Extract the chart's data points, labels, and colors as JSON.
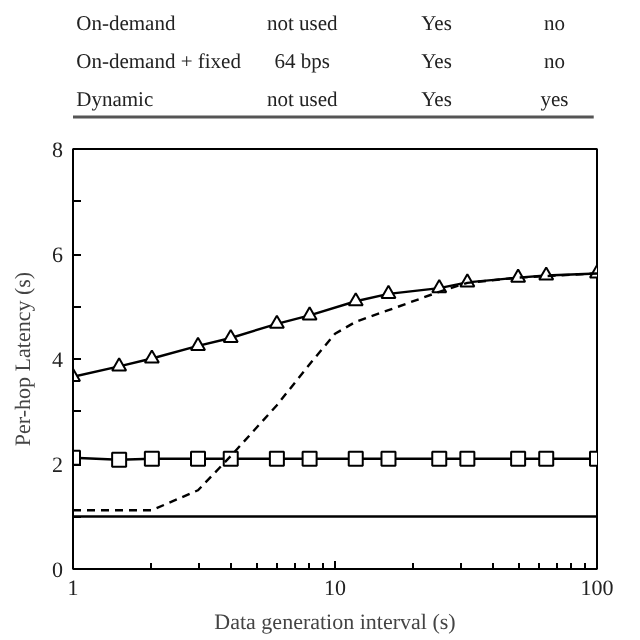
{
  "chart_data": {
    "type": "line",
    "xlabel": "Data generation interval (s)",
    "ylabel": "Per-hop Latency (s)",
    "log": "x",
    "xlim": [
      1,
      100
    ],
    "xticks": [
      1,
      10,
      100
    ],
    "ylim": [
      0,
      8
    ],
    "yticks": [
      0,
      {
        "value": 1,
        "label": null
      },
      2,
      {
        "value": 3,
        "label": null
      },
      4,
      {
        "value": 5,
        "label": null
      },
      6,
      {
        "value": 7,
        "label": null
      },
      8
    ],
    "grid": false,
    "annotations": [
      "On-demand",
      "not used",
      "Yes",
      "no",
      "On-demand + fixed",
      "64 bps",
      "Yes",
      "no",
      "Dynamic",
      "not used",
      "Yes",
      "yes"
    ],
    "series": [
      {
        "color": "#000000",
        "marker": "triangle",
        "line_style": "solid",
        "x": [
          1,
          1.5,
          2,
          3,
          4,
          6,
          8,
          12,
          16,
          25,
          32,
          50,
          64,
          100
        ],
        "values": [
          3.66,
          3.86,
          4.01,
          4.25,
          4.4,
          4.67,
          4.83,
          5.1,
          5.24,
          5.35,
          5.46,
          5.55,
          5.59,
          5.63
        ]
      },
      {
        "color": "#000000",
        "marker": "square",
        "line_style": "solid",
        "x": [
          1,
          1.5,
          2,
          3,
          4,
          6,
          8,
          12,
          16,
          25,
          32,
          50,
          64,
          100
        ],
        "values": [
          2.12,
          2.08,
          2.1,
          2.1,
          2.1,
          2.1,
          2.1,
          2.1,
          2.1,
          2.1,
          2.1,
          2.1,
          2.1,
          2.1
        ]
      },
      {
        "color": "#000000",
        "marker": "none",
        "line_style": "dashed",
        "x": [
          1,
          2,
          3,
          4,
          6,
          8,
          10,
          12,
          16,
          25,
          32,
          50,
          100
        ],
        "values": [
          1.12,
          1.12,
          1.5,
          2.15,
          3.12,
          3.9,
          4.48,
          4.71,
          4.93,
          5.28,
          5.45,
          5.55,
          5.63
        ]
      },
      {
        "color": "#000000",
        "marker": "none",
        "line_style": "solid",
        "x": [
          1,
          100
        ],
        "values": [
          1.0,
          1.0
        ]
      }
    ]
  }
}
